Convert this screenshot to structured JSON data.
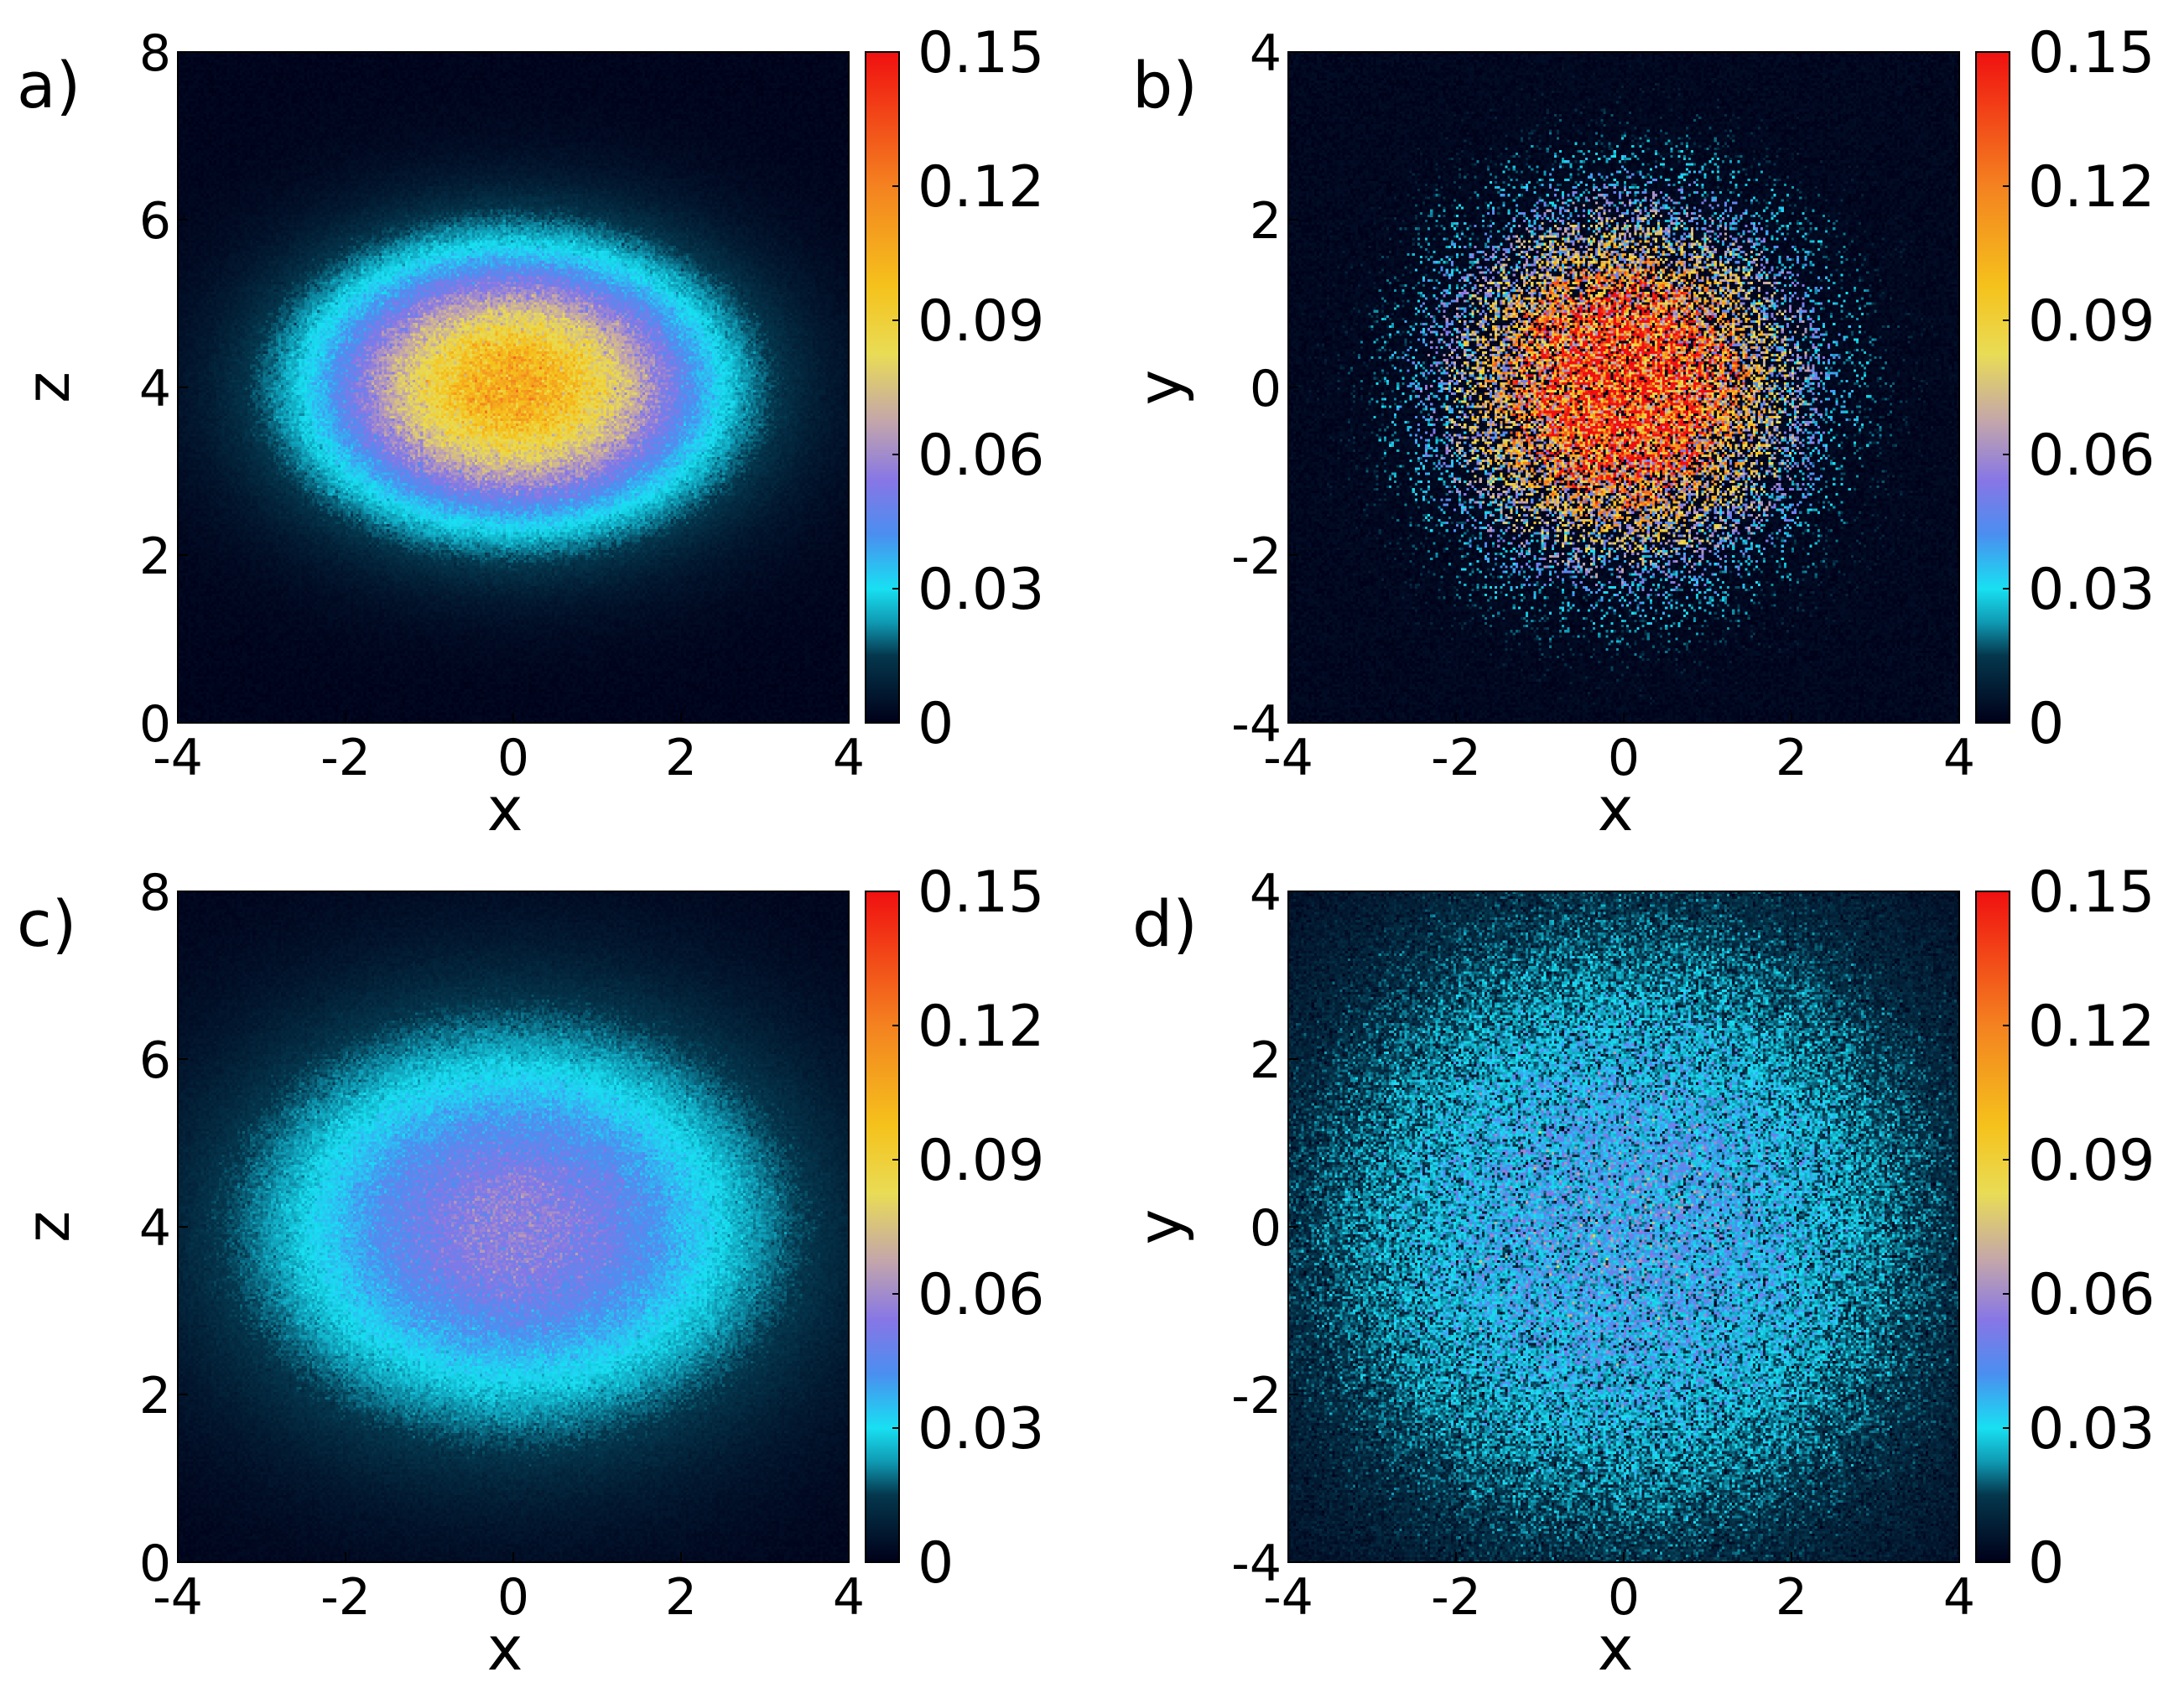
{
  "chart_data": [
    {
      "type": "heatmap",
      "panel_label": "a)",
      "xlabel": "x",
      "ylabel": "z",
      "xlim": [
        -4,
        4
      ],
      "ylim": [
        0,
        8
      ],
      "xticks": [
        "-4",
        "-2",
        "0",
        "2",
        "4"
      ],
      "yticks": [
        "0",
        "2",
        "4",
        "6",
        "8"
      ],
      "colorbar": {
        "min": 0,
        "max": 0.15,
        "ticks": [
          "0",
          "0.03",
          "0.06",
          "0.09",
          "0.12",
          "0.15"
        ]
      },
      "distribution": {
        "center": [
          0,
          4
        ],
        "sigma": [
          1.55,
          1.05
        ],
        "peak": 0.105,
        "noise": 0.08
      }
    },
    {
      "type": "heatmap",
      "panel_label": "b)",
      "xlabel": "x",
      "ylabel": "y",
      "xlim": [
        -4,
        4
      ],
      "ylim": [
        -4,
        4
      ],
      "xticks": [
        "-4",
        "-2",
        "0",
        "2",
        "4"
      ],
      "yticks": [
        "-4",
        "-2",
        "0",
        "2",
        "4"
      ],
      "colorbar": {
        "min": 0,
        "max": 0.15,
        "ticks": [
          "0",
          "0.03",
          "0.06",
          "0.09",
          "0.12",
          "0.15"
        ]
      },
      "distribution": {
        "center": [
          0,
          0
        ],
        "sigma": [
          1.45,
          1.45
        ],
        "peak": 0.13,
        "noise": 1.0
      }
    },
    {
      "type": "heatmap",
      "panel_label": "c)",
      "xlabel": "x",
      "ylabel": "z",
      "xlim": [
        -4,
        4
      ],
      "ylim": [
        0,
        8
      ],
      "xticks": [
        "-4",
        "-2",
        "0",
        "2",
        "4"
      ],
      "yticks": [
        "0",
        "2",
        "4",
        "6",
        "8"
      ],
      "colorbar": {
        "min": 0,
        "max": 0.15,
        "ticks": [
          "0",
          "0.03",
          "0.06",
          "0.09",
          "0.12",
          "0.15"
        ]
      },
      "distribution": {
        "center": [
          0,
          4
        ],
        "sigma": [
          2.1,
          1.6
        ],
        "peak": 0.055,
        "noise": 0.08
      }
    },
    {
      "type": "heatmap",
      "panel_label": "d)",
      "xlabel": "x",
      "ylabel": "y",
      "xlim": [
        -4,
        4
      ],
      "ylim": [
        -4,
        4
      ],
      "xticks": [
        "-4",
        "-2",
        "0",
        "2",
        "4"
      ],
      "yticks": [
        "-4",
        "-2",
        "0",
        "2",
        "4"
      ],
      "colorbar": {
        "min": 0,
        "max": 0.15,
        "ticks": [
          "0",
          "0.03",
          "0.06",
          "0.09",
          "0.12",
          "0.15"
        ]
      },
      "distribution": {
        "center": [
          0,
          0
        ],
        "sigma": [
          2.6,
          2.6
        ],
        "peak": 0.036,
        "noise": 0.4
      }
    }
  ],
  "colormap": {
    "name": "custom-jet-like",
    "stops": [
      {
        "v": 0.0,
        "color": "#000018"
      },
      {
        "v": 0.1,
        "color": "#04374d"
      },
      {
        "v": 0.15,
        "color": "#0f9ab3"
      },
      {
        "v": 0.2,
        "color": "#18e0f2"
      },
      {
        "v": 0.28,
        "color": "#4a8ff0"
      },
      {
        "v": 0.36,
        "color": "#8676e6"
      },
      {
        "v": 0.45,
        "color": "#c4a6aa"
      },
      {
        "v": 0.55,
        "color": "#e9dc55"
      },
      {
        "v": 0.65,
        "color": "#f5c21c"
      },
      {
        "v": 0.8,
        "color": "#f48220"
      },
      {
        "v": 1.0,
        "color": "#f01010"
      }
    ]
  }
}
